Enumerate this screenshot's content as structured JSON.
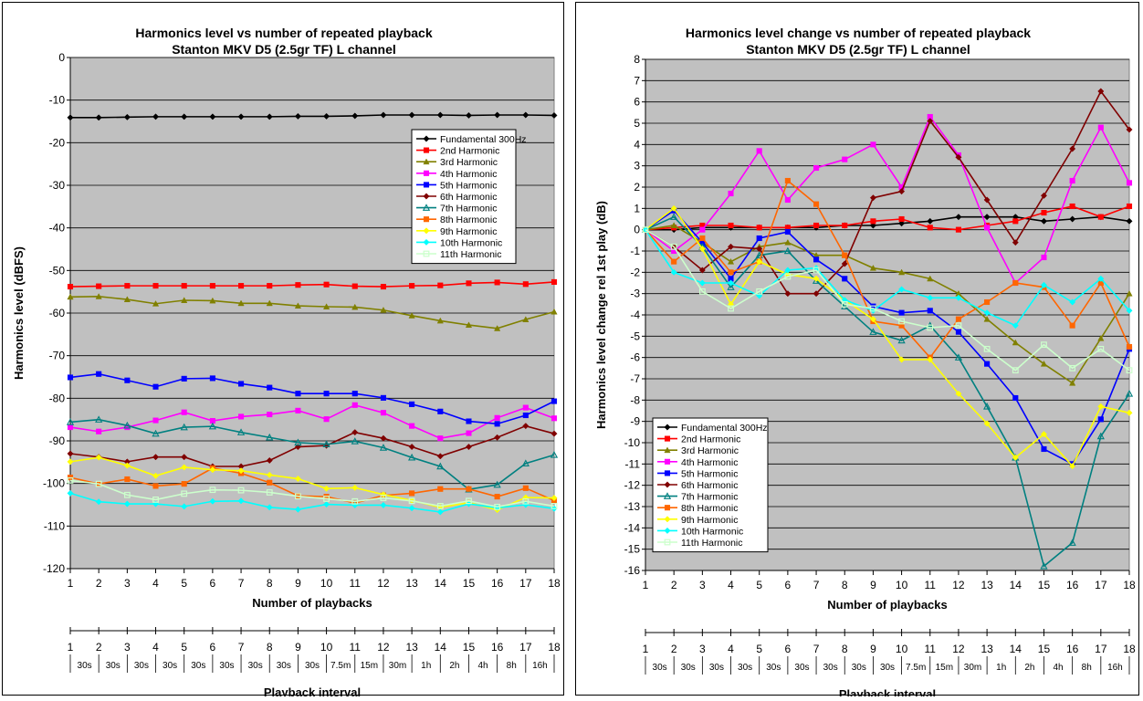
{
  "chart_data": [
    {
      "type": "line",
      "title_lines": [
        "Harmonics level vs number of repeated playback",
        "Stanton MKV D5 (2.5gr TF) L channel"
      ],
      "xlabel": "Number of  playbacks",
      "x2label": "Playback interval",
      "ylabel": "Harmonics level (dBFS)",
      "x": [
        1,
        2,
        3,
        4,
        5,
        6,
        7,
        8,
        9,
        10,
        11,
        12,
        13,
        14,
        15,
        16,
        17,
        18
      ],
      "intervals": [
        "30s",
        "30s",
        "30s",
        "30s",
        "30s",
        "30s",
        "30s",
        "30s",
        "30s",
        "7.5m",
        "15m",
        "30m",
        "1h",
        "2h",
        "4h",
        "8h",
        "16h"
      ],
      "xlim": [
        1,
        18
      ],
      "ylim": [
        -120,
        0
      ],
      "ytick_step": 10,
      "grid": true,
      "legend_position": "upper-right",
      "series": [
        {
          "name": "Fundamental 300Hz",
          "color": "#000000",
          "marker": "diamond",
          "values": [
            -14.1,
            -14.1,
            -14,
            -13.9,
            -13.9,
            -13.9,
            -13.9,
            -13.9,
            -13.8,
            -13.8,
            -13.7,
            -13.5,
            -13.5,
            -13.5,
            -13.6,
            -13.5,
            -13.5,
            -13.6
          ]
        },
        {
          "name": "2nd Harmonic",
          "color": "#ff0000",
          "marker": "square",
          "values": [
            -53.8,
            -53.7,
            -53.6,
            -53.6,
            -53.6,
            -53.6,
            -53.6,
            -53.6,
            -53.4,
            -53.3,
            -53.7,
            -53.8,
            -53.6,
            -53.5,
            -53,
            -52.8,
            -53.2,
            -52.7
          ]
        },
        {
          "name": "3rd Harmonic",
          "color": "#808000",
          "marker": "triangle",
          "values": [
            -56.2,
            -56.1,
            -56.8,
            -57.8,
            -57,
            -57.1,
            -57.7,
            -57.7,
            -58.3,
            -58.5,
            -58.6,
            -59.3,
            -60.6,
            -61.8,
            -62.8,
            -63.6,
            -61.5,
            -59.7
          ]
        },
        {
          "name": "4th Harmonic",
          "color": "#ff00ff",
          "marker": "square",
          "values": [
            -86.8,
            -87.8,
            -86.8,
            -85.2,
            -83.3,
            -85.3,
            -84.3,
            -83.8,
            -82.9,
            -84.9,
            -81.6,
            -83.4,
            -86.5,
            -89.4,
            -88.2,
            -84.6,
            -82.2,
            -84.7
          ]
        },
        {
          "name": "5th Harmonic",
          "color": "#0000ff",
          "marker": "square",
          "values": [
            -75.1,
            -74.3,
            -75.8,
            -77.3,
            -75.4,
            -75.3,
            -76.6,
            -77.5,
            -78.9,
            -78.9,
            -78.9,
            -79.9,
            -81.4,
            -83.1,
            -85.4,
            -86,
            -84,
            -80.7
          ]
        },
        {
          "name": "6th Harmonic",
          "color": "#800000",
          "marker": "diamond",
          "values": [
            -93,
            -93.8,
            -94.9,
            -93.8,
            -93.8,
            -96,
            -96,
            -94.6,
            -91.4,
            -91.1,
            -88,
            -89.4,
            -91.4,
            -93.6,
            -91.4,
            -89.2,
            -86.5,
            -88.3
          ]
        },
        {
          "name": "7th Harmonic",
          "color": "#008080",
          "marker": "triangle-open",
          "values": [
            -85.6,
            -85,
            -86.4,
            -88.3,
            -86.8,
            -86.6,
            -88,
            -89.2,
            -90.4,
            -90.8,
            -90.1,
            -91.6,
            -93.9,
            -96,
            -101.4,
            -100.3,
            -95.3,
            -93.3
          ]
        },
        {
          "name": "8th Harmonic",
          "color": "#ff6600",
          "marker": "square",
          "values": [
            -98.6,
            -100.1,
            -99,
            -100.6,
            -100.1,
            -96.4,
            -97.6,
            -99.8,
            -102.9,
            -103.1,
            -104.6,
            -102.8,
            -102.3,
            -101.3,
            -101.3,
            -103.1,
            -101.1,
            -104
          ]
        },
        {
          "name": "9th Harmonic",
          "color": "#ffff00",
          "marker": "diamond",
          "values": [
            -94.9,
            -93.9,
            -95.8,
            -98.2,
            -96.2,
            -96.8,
            -97,
            -98,
            -98.9,
            -101.2,
            -101,
            -102.6,
            -104,
            -105.6,
            -104.5,
            -106.2,
            -103.3,
            -103.4
          ]
        },
        {
          "name": "10th Harmonic",
          "color": "#00ffff",
          "marker": "diamond",
          "values": [
            -102.3,
            -104.3,
            -104.8,
            -104.8,
            -105.4,
            -104.2,
            -104.1,
            -105.6,
            -106.1,
            -104.9,
            -105.1,
            -105.1,
            -105.8,
            -106.7,
            -104.8,
            -105.7,
            -105,
            -105.9
          ]
        },
        {
          "name": "11th Harmonic",
          "color": "#ccffcc",
          "marker": "square-open",
          "values": [
            -99.3,
            -100.1,
            -102.7,
            -103.8,
            -102.4,
            -101.5,
            -101.6,
            -102.1,
            -103,
            -103.6,
            -104.2,
            -103.4,
            -104.1,
            -105.3,
            -104.1,
            -105.5,
            -104.2,
            -105.3
          ]
        }
      ]
    },
    {
      "type": "line",
      "title_lines": [
        "Harmonics level change vs number of repeated playback",
        "Stanton MKV D5 (2.5gr TF) L channel"
      ],
      "xlabel": "Number of  playbacks",
      "x2label": "Playback interval",
      "ylabel": "Harmonics level change rel 1st play (dB)",
      "x": [
        1,
        2,
        3,
        4,
        5,
        6,
        7,
        8,
        9,
        10,
        11,
        12,
        13,
        14,
        15,
        16,
        17,
        18
      ],
      "intervals": [
        "30s",
        "30s",
        "30s",
        "30s",
        "30s",
        "30s",
        "30s",
        "30s",
        "30s",
        "7.5m",
        "15m",
        "30m",
        "1h",
        "2h",
        "4h",
        "8h",
        "16h"
      ],
      "xlim": [
        1,
        18
      ],
      "ylim": [
        -16,
        8
      ],
      "ytick_step": 1,
      "grid": true,
      "legend_position": "lower-left",
      "series": [
        {
          "name": "Fundamental 300Hz",
          "color": "#000000",
          "marker": "diamond",
          "values": [
            0,
            0,
            0.1,
            0.1,
            0.1,
            0.1,
            0.1,
            0.2,
            0.2,
            0.3,
            0.4,
            0.6,
            0.6,
            0.6,
            0.4,
            0.5,
            0.6,
            0.4
          ]
        },
        {
          "name": "2nd Harmonic",
          "color": "#ff0000",
          "marker": "square",
          "values": [
            0,
            0.1,
            0.2,
            0.2,
            0.1,
            0.1,
            0.2,
            0.2,
            0.4,
            0.5,
            0.1,
            0,
            0.2,
            0.4,
            0.8,
            1.1,
            0.6,
            1.1
          ]
        },
        {
          "name": "3rd Harmonic",
          "color": "#808000",
          "marker": "triangle",
          "values": [
            0,
            0.2,
            -0.6,
            -1.5,
            -0.8,
            -0.6,
            -1.2,
            -1.2,
            -1.8,
            -2,
            -2.3,
            -3,
            -4.2,
            -5.3,
            -6.3,
            -7.2,
            -5.1,
            -3
          ]
        },
        {
          "name": "4th Harmonic",
          "color": "#ff00ff",
          "marker": "square",
          "values": [
            0,
            -1,
            0,
            1.7,
            3.7,
            1.4,
            2.9,
            3.3,
            4,
            2,
            5.3,
            3.5,
            0.1,
            -2.5,
            -1.3,
            2.3,
            4.8,
            2.2
          ]
        },
        {
          "name": "5th Harmonic",
          "color": "#0000ff",
          "marker": "square",
          "values": [
            0,
            0.9,
            -0.6,
            -2.3,
            -0.4,
            -0.1,
            -1.4,
            -2.3,
            -3.6,
            -3.9,
            -3.8,
            -4.8,
            -6.3,
            -7.9,
            -10.3,
            -11,
            -8.9,
            -5.6
          ]
        },
        {
          "name": "6th Harmonic",
          "color": "#800000",
          "marker": "diamond",
          "values": [
            0,
            -0.8,
            -1.9,
            -0.8,
            -0.9,
            -3,
            -3,
            -1.6,
            1.5,
            1.8,
            5.1,
            3.4,
            1.4,
            -0.6,
            1.6,
            3.8,
            6.5,
            4.7
          ]
        },
        {
          "name": "7th Harmonic",
          "color": "#008080",
          "marker": "triangle-open",
          "values": [
            0,
            0.6,
            -0.8,
            -2.7,
            -1.2,
            -1,
            -2.4,
            -3.6,
            -4.8,
            -5.2,
            -4.5,
            -6,
            -8.3,
            -10.7,
            -15.8,
            -14.7,
            -9.7,
            -7.7
          ]
        },
        {
          "name": "8th Harmonic",
          "color": "#ff6600",
          "marker": "square",
          "values": [
            0,
            -1.5,
            -0.4,
            -2,
            -1.5,
            2.3,
            1.2,
            -1.2,
            -4.3,
            -4.5,
            -6,
            -4.2,
            -3.4,
            -2.5,
            -2.7,
            -4.5,
            -2.5,
            -5.5
          ]
        },
        {
          "name": "9th Harmonic",
          "color": "#ffff00",
          "marker": "diamond",
          "values": [
            0,
            1,
            -0.9,
            -3.5,
            -1.5,
            -2.1,
            -2.3,
            -3.3,
            -4.2,
            -6.1,
            -6.1,
            -7.7,
            -9.1,
            -10.7,
            -9.6,
            -11.1,
            -8.3,
            -8.6
          ]
        },
        {
          "name": "10th Harmonic",
          "color": "#00ffff",
          "marker": "diamond",
          "values": [
            0,
            -2,
            -2.5,
            -2.5,
            -3.1,
            -1.9,
            -1.8,
            -3.3,
            -3.8,
            -2.8,
            -3.2,
            -3.2,
            -3.9,
            -4.5,
            -2.6,
            -3.4,
            -2.3,
            -3.8
          ]
        },
        {
          "name": "11th Harmonic",
          "color": "#ccffcc",
          "marker": "square-open",
          "values": [
            0,
            -0.8,
            -2.9,
            -3.7,
            -2.9,
            -2.2,
            -1.9,
            -3.5,
            -3.7,
            -4.3,
            -4.6,
            -4.5,
            -5.6,
            -6.6,
            -5.4,
            -6.5,
            -5.6,
            -6.6
          ]
        }
      ]
    }
  ]
}
